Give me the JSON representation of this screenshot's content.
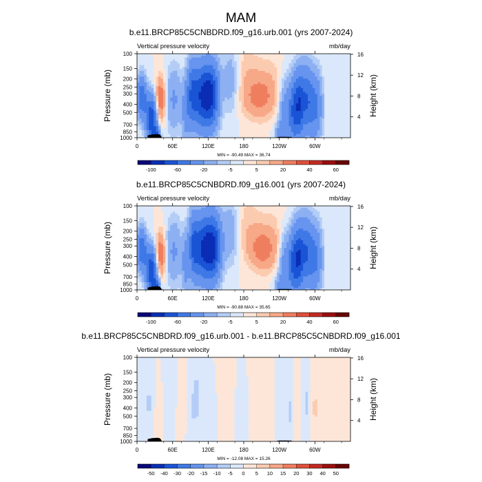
{
  "figure": {
    "title": "MAM"
  },
  "colors": {
    "cb1": [
      "#08087a",
      "#0b2db5",
      "#1a54d6",
      "#3f79e6",
      "#6694ee",
      "#8db0f2",
      "#b4cdf6",
      "#dbe8fb",
      "#fde6d8",
      "#fbcbb0",
      "#f7a887",
      "#ef7e5f",
      "#e0503b",
      "#c42a22",
      "#9a0f10",
      "#6a0404"
    ],
    "cb3": [
      "#08087a",
      "#0b2db5",
      "#1a54d6",
      "#3f79e6",
      "#6694ee",
      "#8db0f2",
      "#b4cdf6",
      "#dbe8fb",
      "#fde6d8",
      "#fbcbb0",
      "#f7a887",
      "#ef7e5f",
      "#e0503b",
      "#c42a22",
      "#9a0f10",
      "#6a0404"
    ],
    "terrain": "#000000"
  },
  "chart_data": [
    {
      "type": "heatmap",
      "title": "b.e11.BRCP85C5CNBDRD.f09_g16.urb.001 (yrs 2007-2024)",
      "left_string": "Vertical pressure velocity",
      "right_string": "mb/day",
      "ylabel": "Pressure (mb)",
      "y2label": "Height (km)",
      "xticks": [
        "0",
        "60E",
        "120E",
        "180",
        "120W",
        "60W"
      ],
      "yticks": [
        "100",
        "150",
        "200",
        "250",
        "300",
        "400",
        "500",
        "700",
        "850",
        "1000"
      ],
      "y2ticks": [
        "4",
        "8",
        "12",
        "16"
      ],
      "ylim": [
        1000,
        100
      ],
      "minmax": "MIN = -90.49  MAX = 36.74",
      "colorbar_labels": [
        "-100",
        "-60",
        "-20",
        "-5",
        "5",
        "20",
        "40",
        "60"
      ]
    },
    {
      "type": "heatmap",
      "title": "b.e11.BRCP85C5CNBDRD.f09_g16.001 (yrs 2007-2024)",
      "left_string": "Vertical pressure velocity",
      "right_string": "mb/day",
      "ylabel": "Pressure (mb)",
      "y2label": "Height (km)",
      "xticks": [
        "0",
        "60E",
        "120E",
        "180",
        "120W",
        "60W"
      ],
      "yticks": [
        "100",
        "150",
        "200",
        "250",
        "300",
        "400",
        "500",
        "700",
        "850",
        "1000"
      ],
      "y2ticks": [
        "4",
        "8",
        "12",
        "16"
      ],
      "ylim": [
        1000,
        100
      ],
      "minmax": "MIN = -90.88  MAX = 35.65",
      "colorbar_labels": [
        "-100",
        "-60",
        "-20",
        "-5",
        "5",
        "20",
        "40",
        "60"
      ]
    },
    {
      "type": "heatmap",
      "title": "b.e11.BRCP85C5CNBDRD.f09_g16.urb.001 - b.e11.BRCP85C5CNBDRD.f09_g16.001",
      "left_string": "Vertical pressure velocity",
      "right_string": "mb/day",
      "ylabel": "Pressure (mb)",
      "y2label": "Height (km)",
      "xticks": [
        "0",
        "60E",
        "120E",
        "180",
        "120W",
        "60W"
      ],
      "yticks": [
        "100",
        "150",
        "200",
        "250",
        "300",
        "400",
        "500",
        "700",
        "850",
        "1000"
      ],
      "y2ticks": [
        "4",
        "8",
        "12",
        "16"
      ],
      "ylim": [
        1000,
        100
      ],
      "minmax": "MIN = -12.08  MAX = 15.26",
      "colorbar_labels": [
        "-50",
        "-40",
        "-30",
        "-20",
        "-15",
        "-10",
        "-5",
        "0",
        "5",
        "10",
        "15",
        "20",
        "30",
        "40",
        "50"
      ]
    }
  ]
}
